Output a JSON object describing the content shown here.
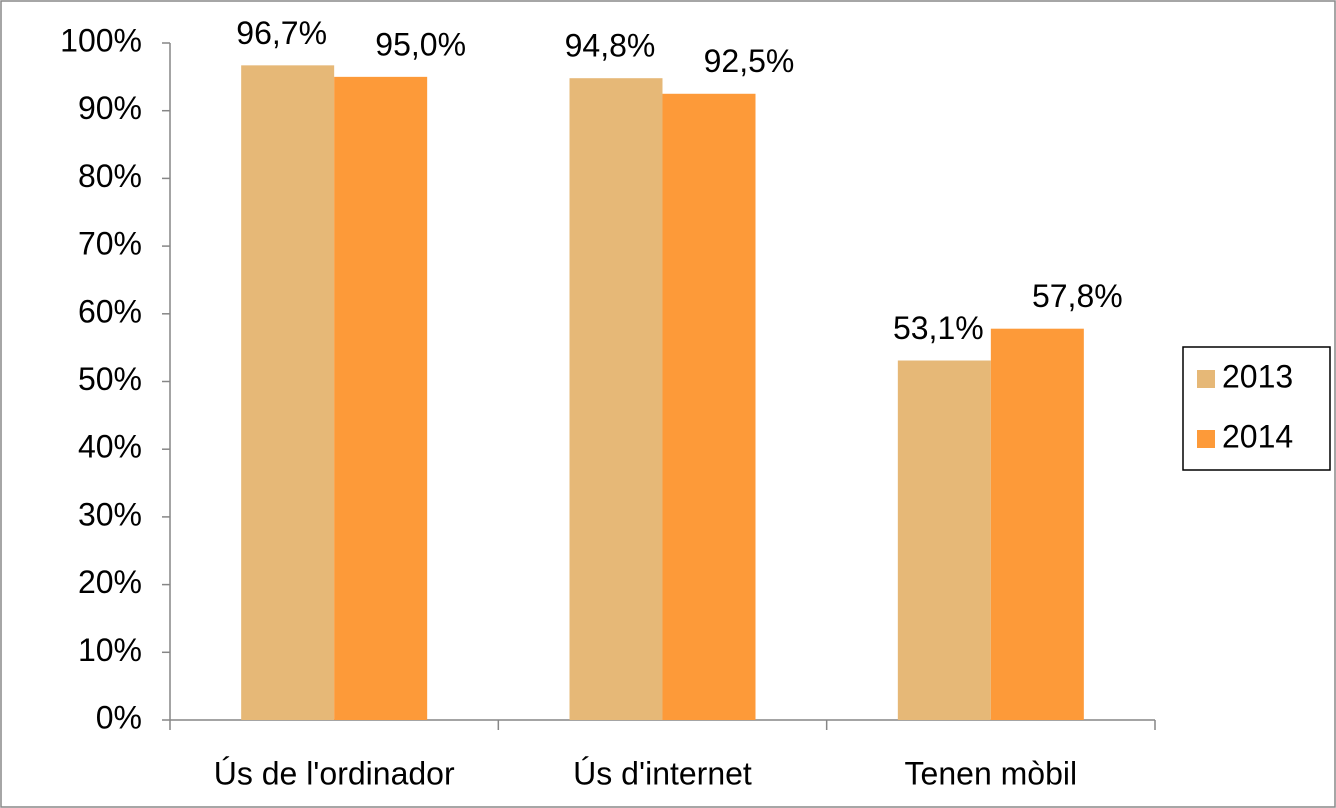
{
  "chart_data": {
    "type": "bar",
    "categories": [
      "Ús de l'ordinador",
      "Ús d'internet",
      "Tenen mòbil"
    ],
    "series": [
      {
        "name": "2013",
        "color": "#e6b877",
        "values": [
          96.7,
          94.8,
          53.1
        ],
        "value_labels": [
          "96,7%",
          "94,8%",
          "53,1%"
        ]
      },
      {
        "name": "2014",
        "color": "#fd9a39",
        "values": [
          95.0,
          92.5,
          57.8
        ],
        "value_labels": [
          "95,0%",
          "92,5%",
          "57,8%"
        ]
      }
    ],
    "ylim": [
      0,
      100
    ],
    "yticks": [
      {
        "value": 0,
        "label": "0%"
      },
      {
        "value": 10,
        "label": "10%"
      },
      {
        "value": 20,
        "label": "20%"
      },
      {
        "value": 30,
        "label": "30%"
      },
      {
        "value": 40,
        "label": "40%"
      },
      {
        "value": 50,
        "label": "50%"
      },
      {
        "value": 60,
        "label": "60%"
      },
      {
        "value": 70,
        "label": "70%"
      },
      {
        "value": 80,
        "label": "80%"
      },
      {
        "value": 90,
        "label": "90%"
      },
      {
        "value": 100,
        "label": "100%"
      }
    ],
    "grid": false,
    "legend": "right"
  }
}
